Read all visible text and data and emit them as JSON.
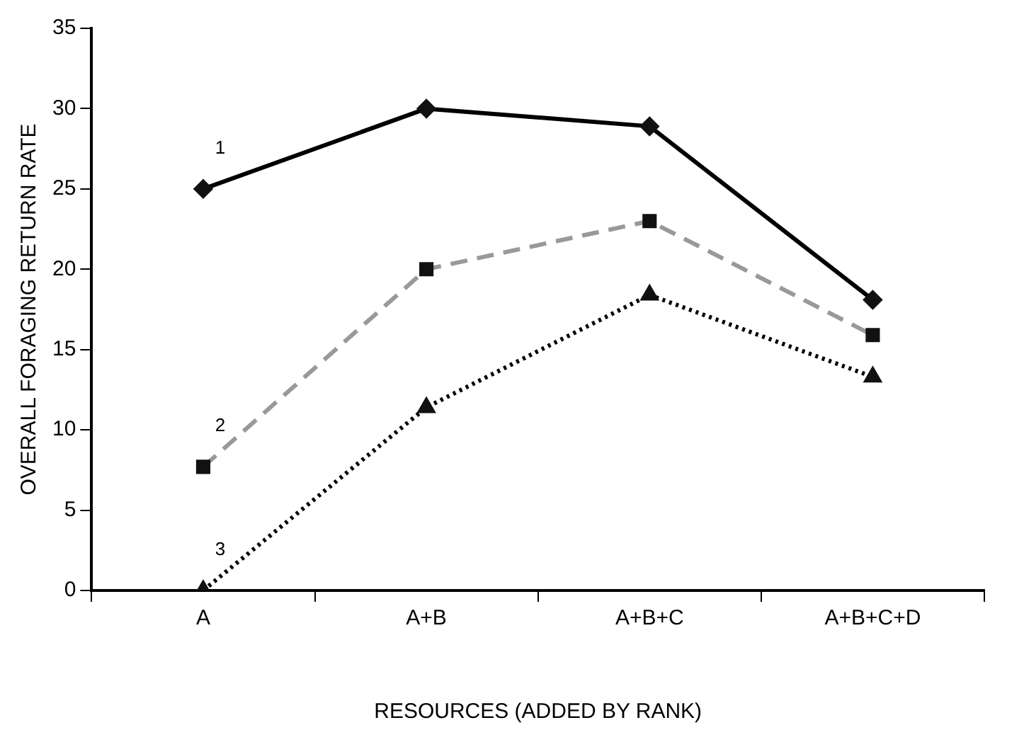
{
  "chart_data": {
    "type": "line",
    "xlabel": "RESOURCES (ADDED BY RANK)",
    "ylabel": "OVERALL FORAGING RETURN RATE",
    "categories": [
      "A",
      "A+B",
      "A+B+C",
      "A+B+C+D"
    ],
    "series": [
      {
        "name": "1",
        "color": "#000000",
        "marker": "diamond",
        "line_style": "solid",
        "values": [
          25,
          30,
          28.9,
          18.1
        ]
      },
      {
        "name": "2",
        "color": "#999999",
        "marker": "square",
        "line_style": "dashed",
        "values": [
          7.7,
          20,
          23,
          15.9
        ]
      },
      {
        "name": "3",
        "color": "#000000",
        "marker": "triangle",
        "line_style": "dotted",
        "values": [
          0,
          11.4,
          18.4,
          13.3
        ]
      }
    ],
    "ylim": [
      0,
      35
    ],
    "yticks": [
      0,
      5,
      10,
      15,
      20,
      25,
      30,
      35
    ],
    "grid": false,
    "legend": false
  }
}
